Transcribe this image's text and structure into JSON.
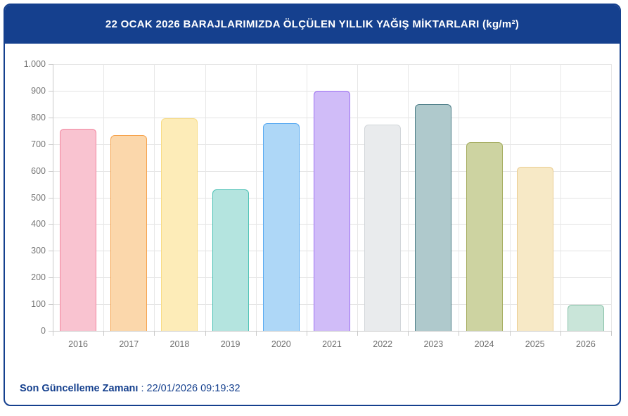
{
  "header": {
    "title": "22 OCAK 2026 BARAJLARIMIZDA ÖLÇÜLEN YILLIK YAĞIŞ MİKTARLARI (kg/m²)",
    "background": "#15408E",
    "text_color": "#FFFFFF"
  },
  "chart_data": {
    "type": "bar",
    "title": "22 OCAK 2026 BARAJLARIMIZDA ÖLÇÜLEN YILLIK YAĞIŞ MİKTARLARI (kg/m²)",
    "categories": [
      "2016",
      "2017",
      "2018",
      "2019",
      "2020",
      "2021",
      "2022",
      "2023",
      "2024",
      "2025",
      "2026"
    ],
    "values": [
      756,
      733,
      797,
      531,
      778,
      900,
      773,
      850,
      707,
      616,
      97
    ],
    "bar_colors": [
      {
        "fill": "#F9C3D0",
        "border": "#F287A0"
      },
      {
        "fill": "#FBD7AB",
        "border": "#F6A44F"
      },
      {
        "fill": "#FDECB8",
        "border": "#F8DC86"
      },
      {
        "fill": "#B4E4DF",
        "border": "#4FC2B6"
      },
      {
        "fill": "#AED7F7",
        "border": "#57A9F1"
      },
      {
        "fill": "#D0BCF8",
        "border": "#9C70F2"
      },
      {
        "fill": "#E9EBED",
        "border": "#D2D6DA"
      },
      {
        "fill": "#AFC9CC",
        "border": "#4E7E88"
      },
      {
        "fill": "#CDD3A1",
        "border": "#A4AC5E"
      },
      {
        "fill": "#F7E9C6",
        "border": "#EACD92"
      },
      {
        "fill": "#C9E5D9",
        "border": "#8CC4AC"
      }
    ],
    "xlabel": "",
    "ylabel": "",
    "ylim": [
      0,
      1000
    ],
    "yticks": [
      0,
      100,
      200,
      300,
      400,
      500,
      600,
      700,
      800,
      900,
      1000
    ],
    "ytick_labels": [
      "0",
      "100",
      "200",
      "300",
      "400",
      "500",
      "600",
      "700",
      "800",
      "900",
      "1.000"
    ],
    "grid": true,
    "legend": "none"
  },
  "footer": {
    "label": "Son Güncelleme Zamanı",
    "separator": " : ",
    "value": "22/01/2026 09:19:32"
  },
  "colors": {
    "navy": "#15408E",
    "axis_text": "#767676",
    "gridline": "#E3E3E3",
    "axis_line": "#C9C9C9"
  }
}
